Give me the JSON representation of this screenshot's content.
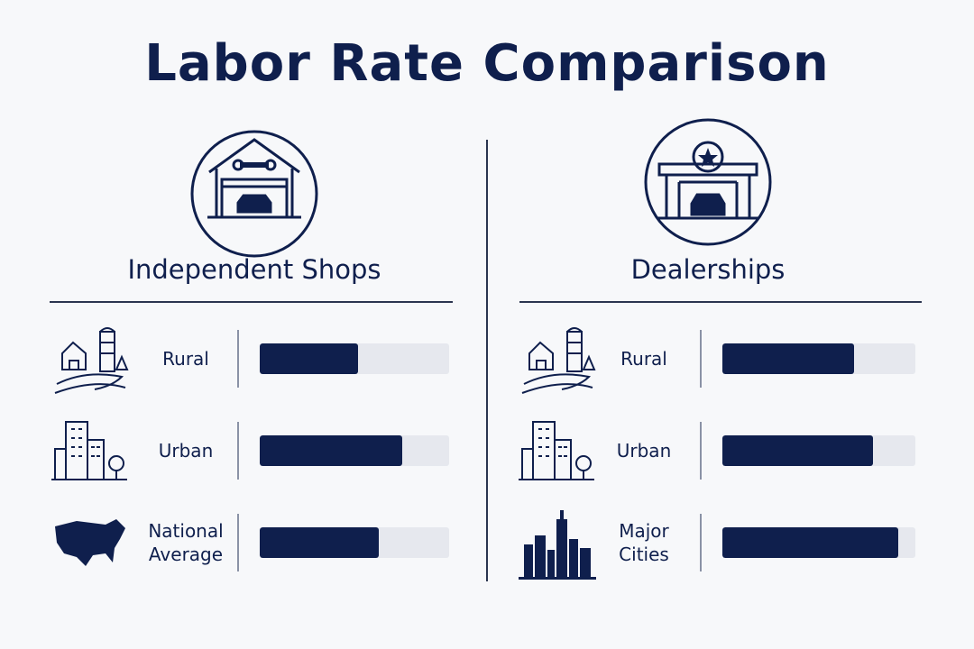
{
  "title": "Labor Rate Comparison",
  "chart_data": [
    {
      "type": "bar",
      "title": "Independent Shops",
      "categories": [
        "Rural",
        "Urban",
        "National Average"
      ],
      "values": [
        52,
        75,
        63
      ],
      "xlim": [
        0,
        100
      ],
      "color": "#0f1f4d"
    },
    {
      "type": "bar",
      "title": "Dealerships",
      "categories": [
        "Rural",
        "Urban",
        "Major Cities"
      ],
      "values": [
        68,
        78,
        91
      ],
      "xlim": [
        0,
        100
      ],
      "color": "#0f1f4d"
    }
  ]
}
